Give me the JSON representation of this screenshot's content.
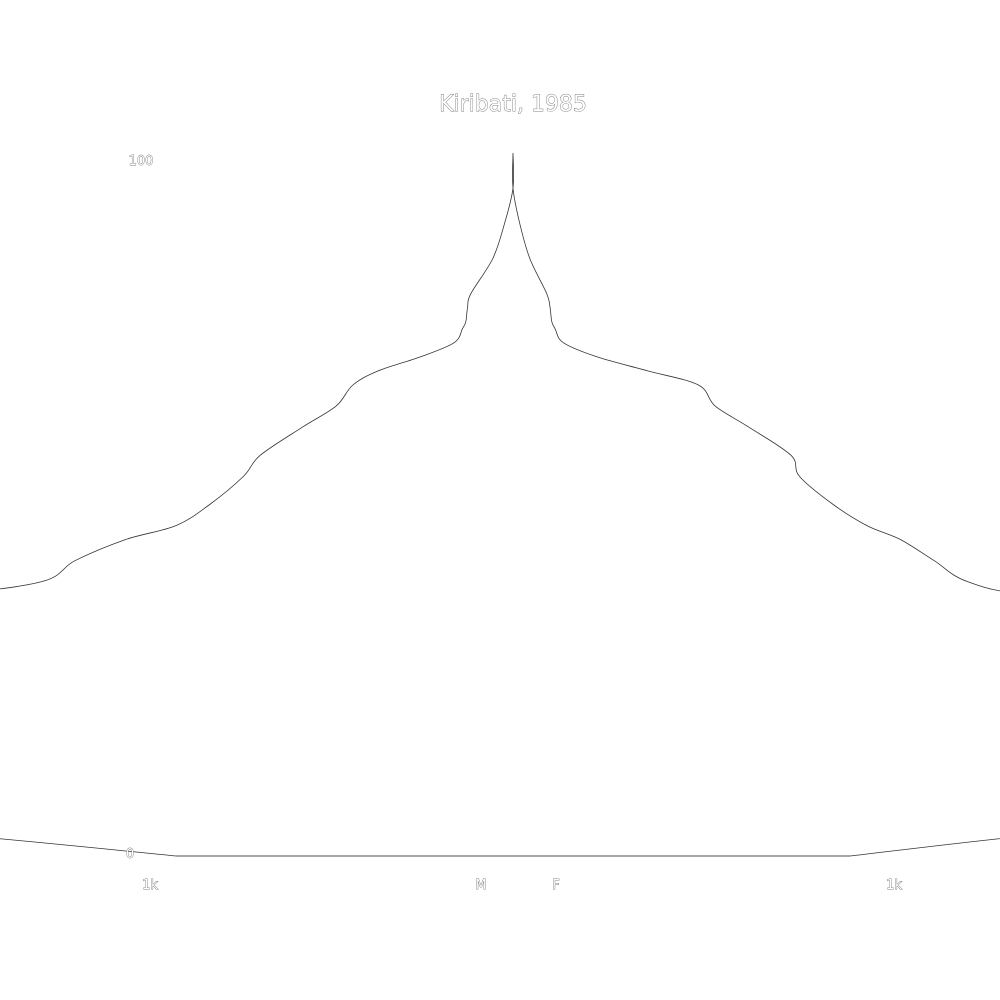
{
  "chart_data": {
    "type": "area",
    "title": "Kiribati, 1985",
    "y_ticks": [
      "0",
      "100"
    ],
    "x_tick_left": "1k",
    "x_tick_right": "1k",
    "male_label": "M",
    "female_label": "F",
    "xlim": [
      0,
      1000
    ],
    "ylim": [
      0,
      100
    ],
    "ages": [
      0,
      3,
      6,
      9,
      11,
      13,
      16,
      18,
      21,
      24,
      26,
      28,
      31,
      34,
      37,
      39,
      42,
      45,
      47,
      50,
      54,
      57,
      61,
      64,
      67,
      69,
      71,
      73,
      75,
      76,
      78,
      80,
      85,
      90,
      95,
      100
    ],
    "series": [
      {
        "name": "M",
        "values": [
          1000,
          870,
          710,
          510,
          280,
          320,
          370,
          460,
          600,
          630,
          660,
          700,
          720,
          750,
          860,
          920,
          940,
          970,
          1000,
          1020,
          1040,
          1050,
          1075,
          1095,
          1105,
          1120,
          1145,
          1165,
          1170,
          1172,
          1173,
          1175,
          1188,
          1195,
          1200,
          1200
        ]
      },
      {
        "name": "F",
        "values": [
          1000,
          890,
          750,
          580,
          260,
          320,
          380,
          460,
          580,
          640,
          690,
          720,
          740,
          760,
          890,
          930,
          950,
          970,
          990,
          1010,
          1030,
          1035,
          1060,
          1080,
          1090,
          1120,
          1150,
          1170,
          1175,
          1177,
          1178,
          1180,
          1190,
          1196,
          1200,
          1200
        ]
      }
    ]
  }
}
